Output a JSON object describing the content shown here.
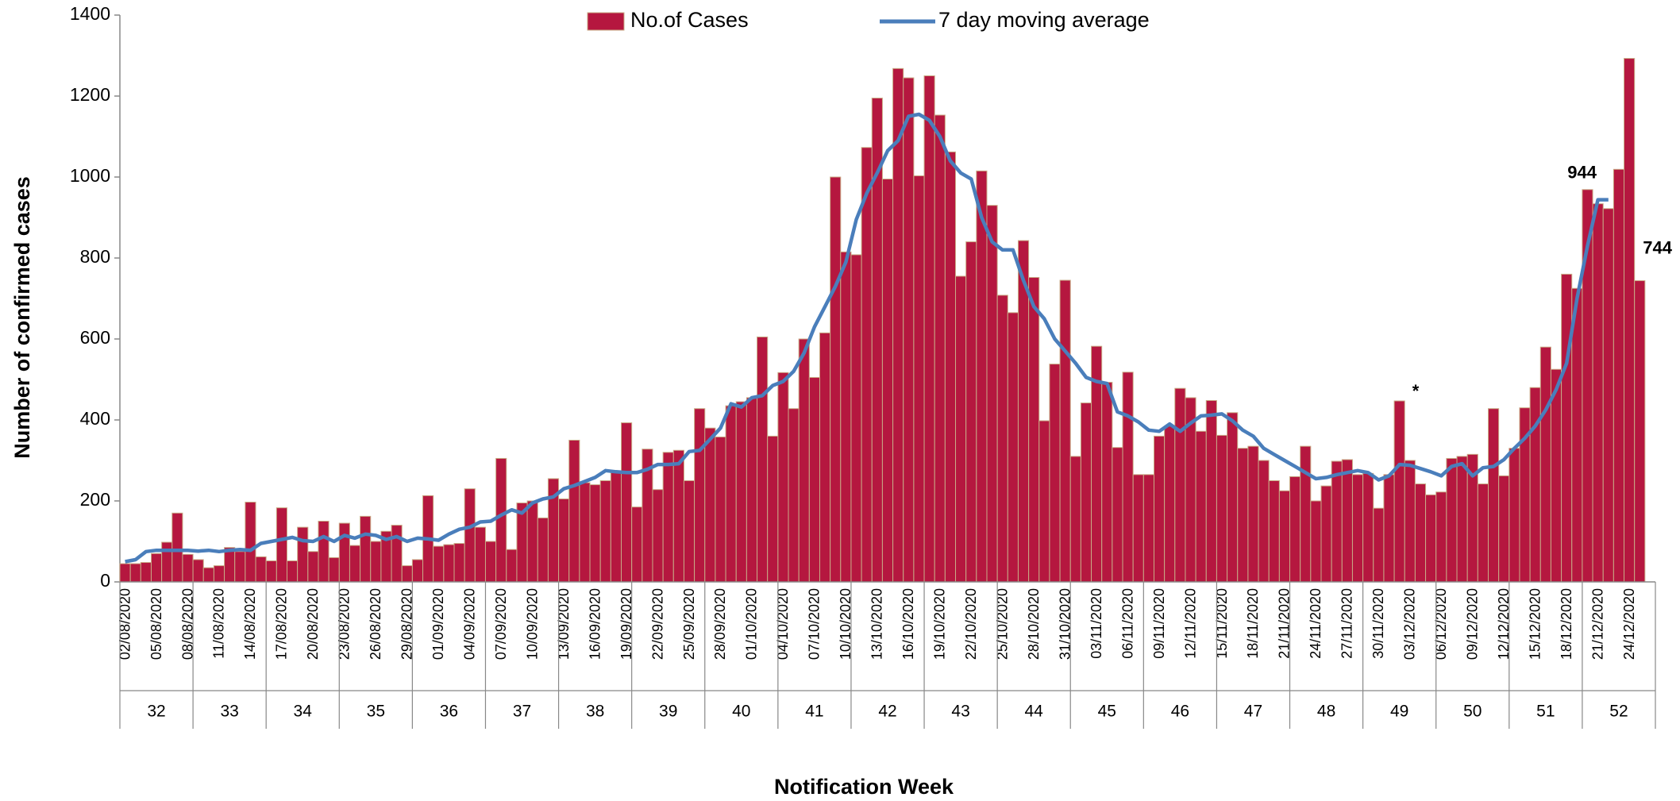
{
  "chart_data": {
    "type": "bar_line",
    "x_title": "Notification Week",
    "y_title": "Number of confirmed cases",
    "annotation": "*",
    "ylim": [
      0,
      1400
    ],
    "yticks": [
      0,
      200,
      400,
      600,
      800,
      1000,
      1200,
      1400
    ],
    "weeks": [
      "32",
      "33",
      "34",
      "35",
      "36",
      "37",
      "38",
      "39",
      "40",
      "41",
      "42",
      "43",
      "44",
      "45",
      "46",
      "47",
      "48",
      "49",
      "50",
      "51",
      "52"
    ],
    "categories": [
      "02/08/2020",
      null,
      null,
      "05/08/2020",
      null,
      null,
      "08/08/2020",
      null,
      null,
      "11/08/2020",
      null,
      null,
      "14/08/2020",
      null,
      null,
      "17/08/2020",
      null,
      null,
      "20/08/2020",
      null,
      null,
      "23/08/2020",
      null,
      null,
      "26/08/2020",
      null,
      null,
      "29/08/2020",
      null,
      null,
      "01/09/2020",
      null,
      null,
      "04/09/2020",
      null,
      null,
      "07/09/2020",
      null,
      null,
      "10/09/2020",
      null,
      null,
      "13/09/2020",
      null,
      null,
      "16/09/2020",
      null,
      null,
      "19/09/2020",
      null,
      null,
      "22/09/2020",
      null,
      null,
      "25/09/2020",
      null,
      null,
      "28/09/2020",
      null,
      null,
      "01/10/2020",
      null,
      null,
      "04/10/2020",
      null,
      null,
      "07/10/2020",
      null,
      null,
      "10/10/2020",
      null,
      null,
      "13/10/2020",
      null,
      null,
      "16/10/2020",
      null,
      null,
      "19/10/2020",
      null,
      null,
      "22/10/2020",
      null,
      null,
      "25/10/2020",
      null,
      null,
      "28/10/2020",
      null,
      null,
      "31/10/2020",
      null,
      null,
      "03/11/2020",
      null,
      null,
      "06/11/2020",
      null,
      null,
      "09/11/2020",
      null,
      null,
      "12/11/2020",
      null,
      null,
      "15/11/2020",
      null,
      null,
      "18/11/2020",
      null,
      null,
      "21/11/2020",
      null,
      null,
      "24/11/2020",
      null,
      null,
      "27/11/2020",
      null,
      null,
      "30/11/2020",
      null,
      null,
      "03/12/2020",
      null,
      null,
      "06/12/2020",
      null,
      null,
      "09/12/2020",
      null,
      null,
      "12/12/2020",
      null,
      null,
      "15/12/2020",
      null,
      null,
      "18/12/2020",
      null,
      null,
      "21/12/2020",
      null,
      null,
      "24/12/2020",
      null
    ],
    "series": [
      {
        "name": "No.of Cases",
        "kind": "bar",
        "color": "#b5173f",
        "edge": "#c9ab86",
        "values": [
          45,
          45,
          48,
          70,
          98,
          170,
          68,
          55,
          35,
          40,
          85,
          75,
          197,
          62,
          52,
          183,
          52,
          135,
          75,
          150,
          60,
          145,
          90,
          162,
          100,
          125,
          140,
          40,
          55,
          213,
          88,
          92,
          95,
          230,
          135,
          100,
          305,
          80,
          195,
          200,
          158,
          255,
          205,
          350,
          245,
          240,
          250,
          270,
          393,
          185,
          328,
          228,
          320,
          325,
          250,
          428,
          380,
          358,
          435,
          445,
          455,
          605,
          360,
          517,
          428,
          600,
          505,
          615,
          1000,
          815,
          808,
          1073,
          1195,
          995,
          1268,
          1245,
          1003,
          1250,
          1153,
          1062,
          755,
          840,
          1015,
          930,
          708,
          665,
          843,
          752,
          398,
          538,
          745,
          310,
          442,
          582,
          493,
          332,
          518,
          265,
          265,
          360,
          385,
          478,
          455,
          372,
          448,
          362,
          418,
          330,
          335,
          300,
          250,
          225,
          260,
          335,
          200,
          237,
          298,
          302,
          265,
          268,
          182,
          265,
          447,
          300,
          242,
          215,
          222,
          305,
          310,
          315,
          242,
          428,
          262,
          330,
          430,
          480,
          580,
          525,
          760,
          725,
          969,
          934,
          922,
          1019,
          1293,
          744
        ]
      },
      {
        "name": "7 day moving average",
        "kind": "line",
        "color": "#4a7ebb",
        "values": [
          50,
          55,
          75,
          78,
          78,
          78,
          78,
          76,
          78,
          75,
          78,
          80,
          78,
          95,
          100,
          105,
          110,
          102,
          100,
          112,
          100,
          115,
          108,
          118,
          115,
          105,
          112,
          100,
          108,
          106,
          103,
          118,
          130,
          135,
          148,
          150,
          165,
          178,
          170,
          195,
          205,
          210,
          230,
          238,
          248,
          258,
          275,
          272,
          270,
          270,
          278,
          290,
          290,
          292,
          322,
          325,
          352,
          380,
          440,
          432,
          455,
          460,
          485,
          495,
          520,
          565,
          630,
          680,
          730,
          790,
          895,
          960,
          1010,
          1065,
          1090,
          1150,
          1155,
          1140,
          1100,
          1040,
          1010,
          995,
          900,
          840,
          820,
          820,
          745,
          680,
          650,
          600,
          570,
          540,
          505,
          495,
          490,
          420,
          410,
          395,
          375,
          372,
          390,
          372,
          392,
          410,
          412,
          415,
          398,
          375,
          360,
          330,
          315,
          300,
          285,
          270,
          255,
          258,
          265,
          270,
          275,
          270,
          252,
          262,
          290,
          288,
          280,
          272,
          262,
          285,
          292,
          262,
          282,
          285,
          302,
          330,
          355,
          385,
          425,
          475,
          540,
          700,
          830,
          944,
          944,
          null,
          null,
          null
        ]
      }
    ]
  }
}
